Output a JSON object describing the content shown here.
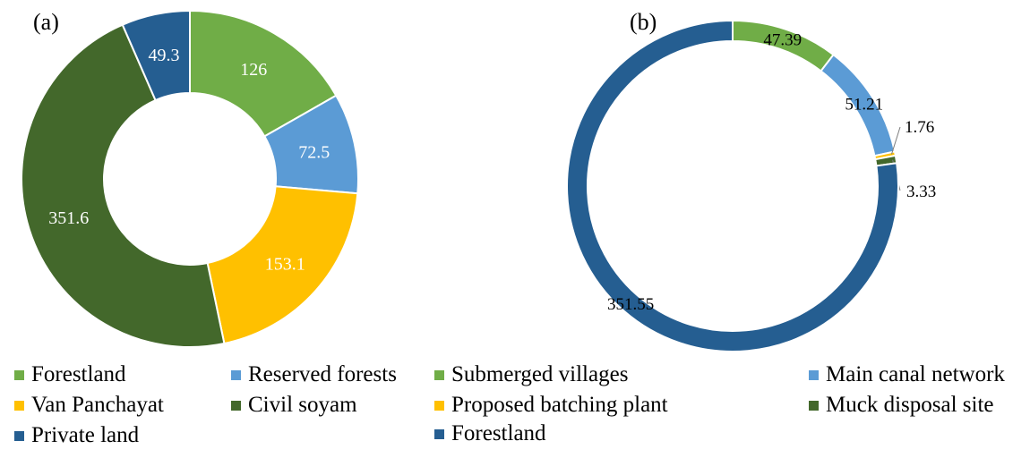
{
  "chart_data": [
    {
      "type": "pie",
      "donut": true,
      "panel_label": "(a)",
      "slices": [
        {
          "label": "Forestland",
          "value": 126,
          "value_label": "126",
          "color": "#70ad47"
        },
        {
          "label": "Reserved forests",
          "value": 72.5,
          "value_label": "72.5",
          "color": "#5b9bd5"
        },
        {
          "label": "Van Panchayat",
          "value": 153.1,
          "value_label": "153.1",
          "color": "#ffc000"
        },
        {
          "label": "Civil soyam",
          "value": 351.6,
          "value_label": "351.6",
          "color": "#43682b"
        },
        {
          "label": "Private land",
          "value": 49.3,
          "value_label": "49.3",
          "color": "#255e91"
        }
      ]
    },
    {
      "type": "pie",
      "donut": true,
      "panel_label": "(b)",
      "slices": [
        {
          "label": "Submerged villages",
          "value": 47.39,
          "value_label": "47.39",
          "color": "#70ad47"
        },
        {
          "label": "Main canal network",
          "value": 51.21,
          "value_label": "51.21",
          "color": "#5b9bd5"
        },
        {
          "label": "Proposed batching plant",
          "value": 1.76,
          "value_label": "1.76",
          "color": "#ffc000"
        },
        {
          "label": "Muck disposal site",
          "value": 3.33,
          "value_label": "3.33",
          "color": "#43682b"
        },
        {
          "label": "Forestland",
          "value": 351.55,
          "value_label": "351.55",
          "color": "#255e91"
        }
      ]
    }
  ],
  "legend": [
    {
      "label": "Forestland",
      "color": "#70ad47"
    },
    {
      "label": "Reserved forests",
      "color": "#5b9bd5"
    },
    {
      "label": "Submerged villages",
      "color": "#70ad47"
    },
    {
      "label": "Main canal network",
      "color": "#5b9bd5"
    },
    {
      "label": "Van Panchayat",
      "color": "#ffc000"
    },
    {
      "label": "Civil soyam",
      "color": "#43682b"
    },
    {
      "label": "Proposed batching plant",
      "color": "#ffc000"
    },
    {
      "label": "Muck disposal site",
      "color": "#43682b"
    },
    {
      "label": "Private land",
      "color": "#255e91"
    },
    {
      "label": "Forestland",
      "color": "#255e91"
    }
  ]
}
